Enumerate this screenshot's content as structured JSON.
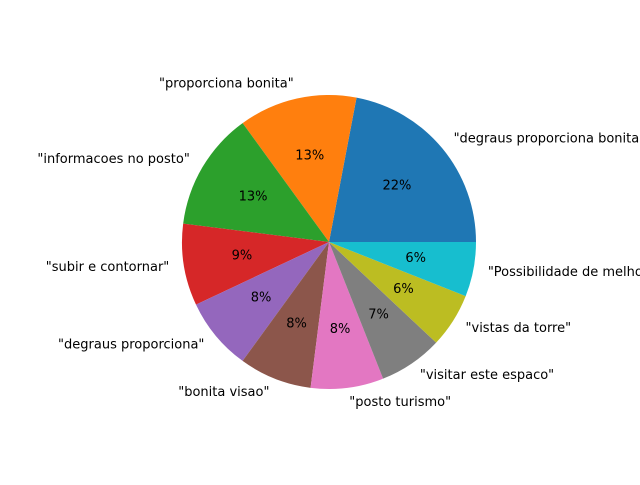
{
  "chart_data": {
    "type": "pie",
    "title": "",
    "start_angle_deg": 0,
    "direction": "counterclockwise",
    "slices": [
      {
        "label": "\"degraus proporciona bonita\"",
        "pct_label": "22%",
        "value": 22,
        "color": "#1f77b4"
      },
      {
        "label": "\"proporciona bonita\"",
        "pct_label": "13%",
        "value": 13,
        "color": "#ff7f0e"
      },
      {
        "label": "\"informacoes no posto\"",
        "pct_label": "13%",
        "value": 13,
        "color": "#2ca02c"
      },
      {
        "label": "\"subir e contornar\"",
        "pct_label": "9%",
        "value": 9,
        "color": "#d62728"
      },
      {
        "label": "\"degraus proporciona\"",
        "pct_label": "8%",
        "value": 8,
        "color": "#9467bd"
      },
      {
        "label": "\"bonita visao\"",
        "pct_label": "8%",
        "value": 8,
        "color": "#8c564b"
      },
      {
        "label": "\"posto turismo\"",
        "pct_label": "8%",
        "value": 8,
        "color": "#e377c2"
      },
      {
        "label": "\"visitar este espaco\"",
        "pct_label": "7%",
        "value": 7,
        "color": "#7f7f7f"
      },
      {
        "label": "\"vistas da torre\"",
        "pct_label": "6%",
        "value": 6,
        "color": "#bcbd22"
      },
      {
        "label": "\"Possibilidade de melhorar\"",
        "pct_label": "6%",
        "value": 6,
        "color": "#17becf"
      }
    ]
  }
}
